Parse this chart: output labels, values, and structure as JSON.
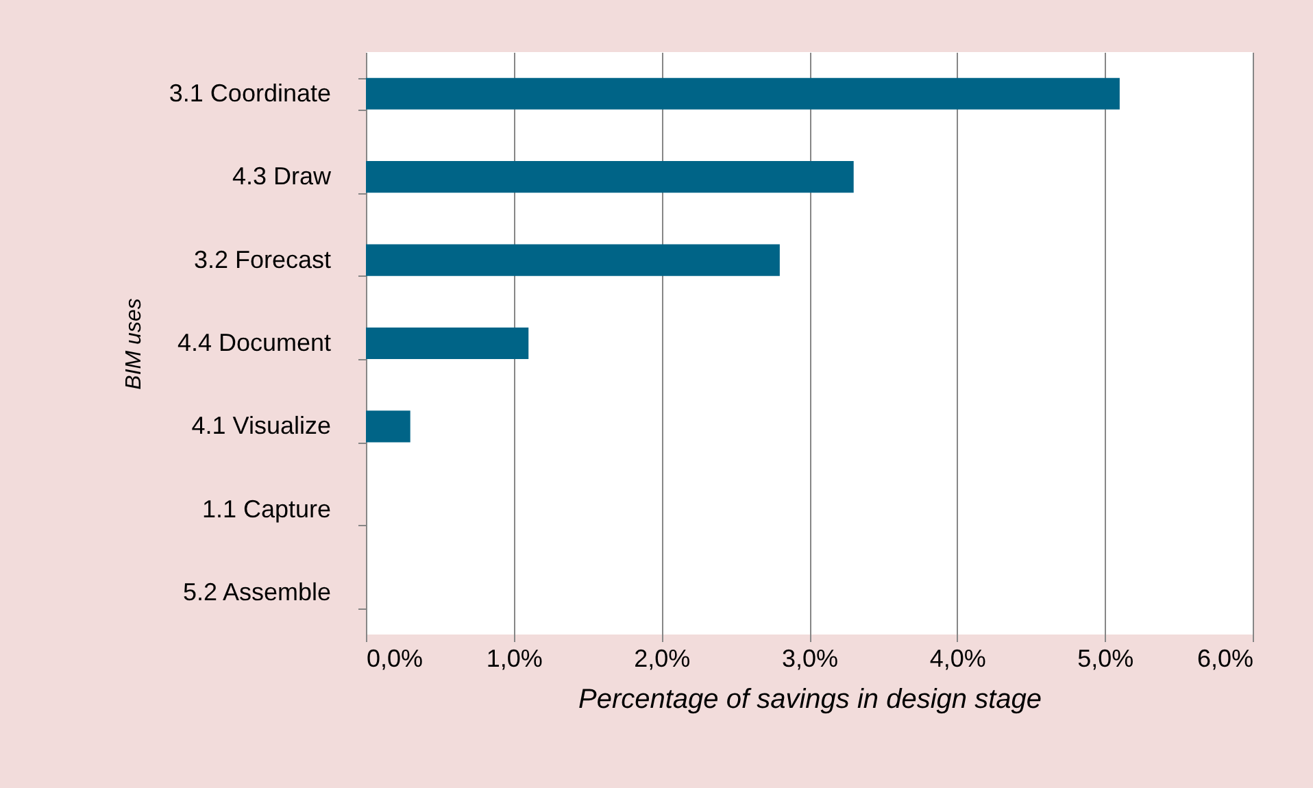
{
  "chart_data": {
    "type": "bar",
    "orientation": "horizontal",
    "xlabel": "Percentage of savings in design stage",
    "ylabel": "BIM uses",
    "categories": [
      "3.1 Coordinate",
      "4.3 Draw",
      "3.2 Forecast",
      "4.4 Document",
      "4.1 Visualize",
      "1.1 Capture",
      "5.2 Assemble"
    ],
    "values": [
      5.1,
      3.3,
      2.8,
      1.1,
      0.3,
      0,
      0
    ],
    "color": "#006487",
    "xlim": [
      0,
      6
    ],
    "xticks": [
      {
        "value": 0,
        "label": "0,0%"
      },
      {
        "value": 1,
        "label": "1,0%"
      },
      {
        "value": 2,
        "label": "2,0%"
      },
      {
        "value": 3,
        "label": "3,0%"
      },
      {
        "value": 4,
        "label": "4,0%"
      },
      {
        "value": 5,
        "label": "5,0%"
      },
      {
        "value": 6,
        "label": "6,0%"
      }
    ],
    "grid": "x"
  }
}
